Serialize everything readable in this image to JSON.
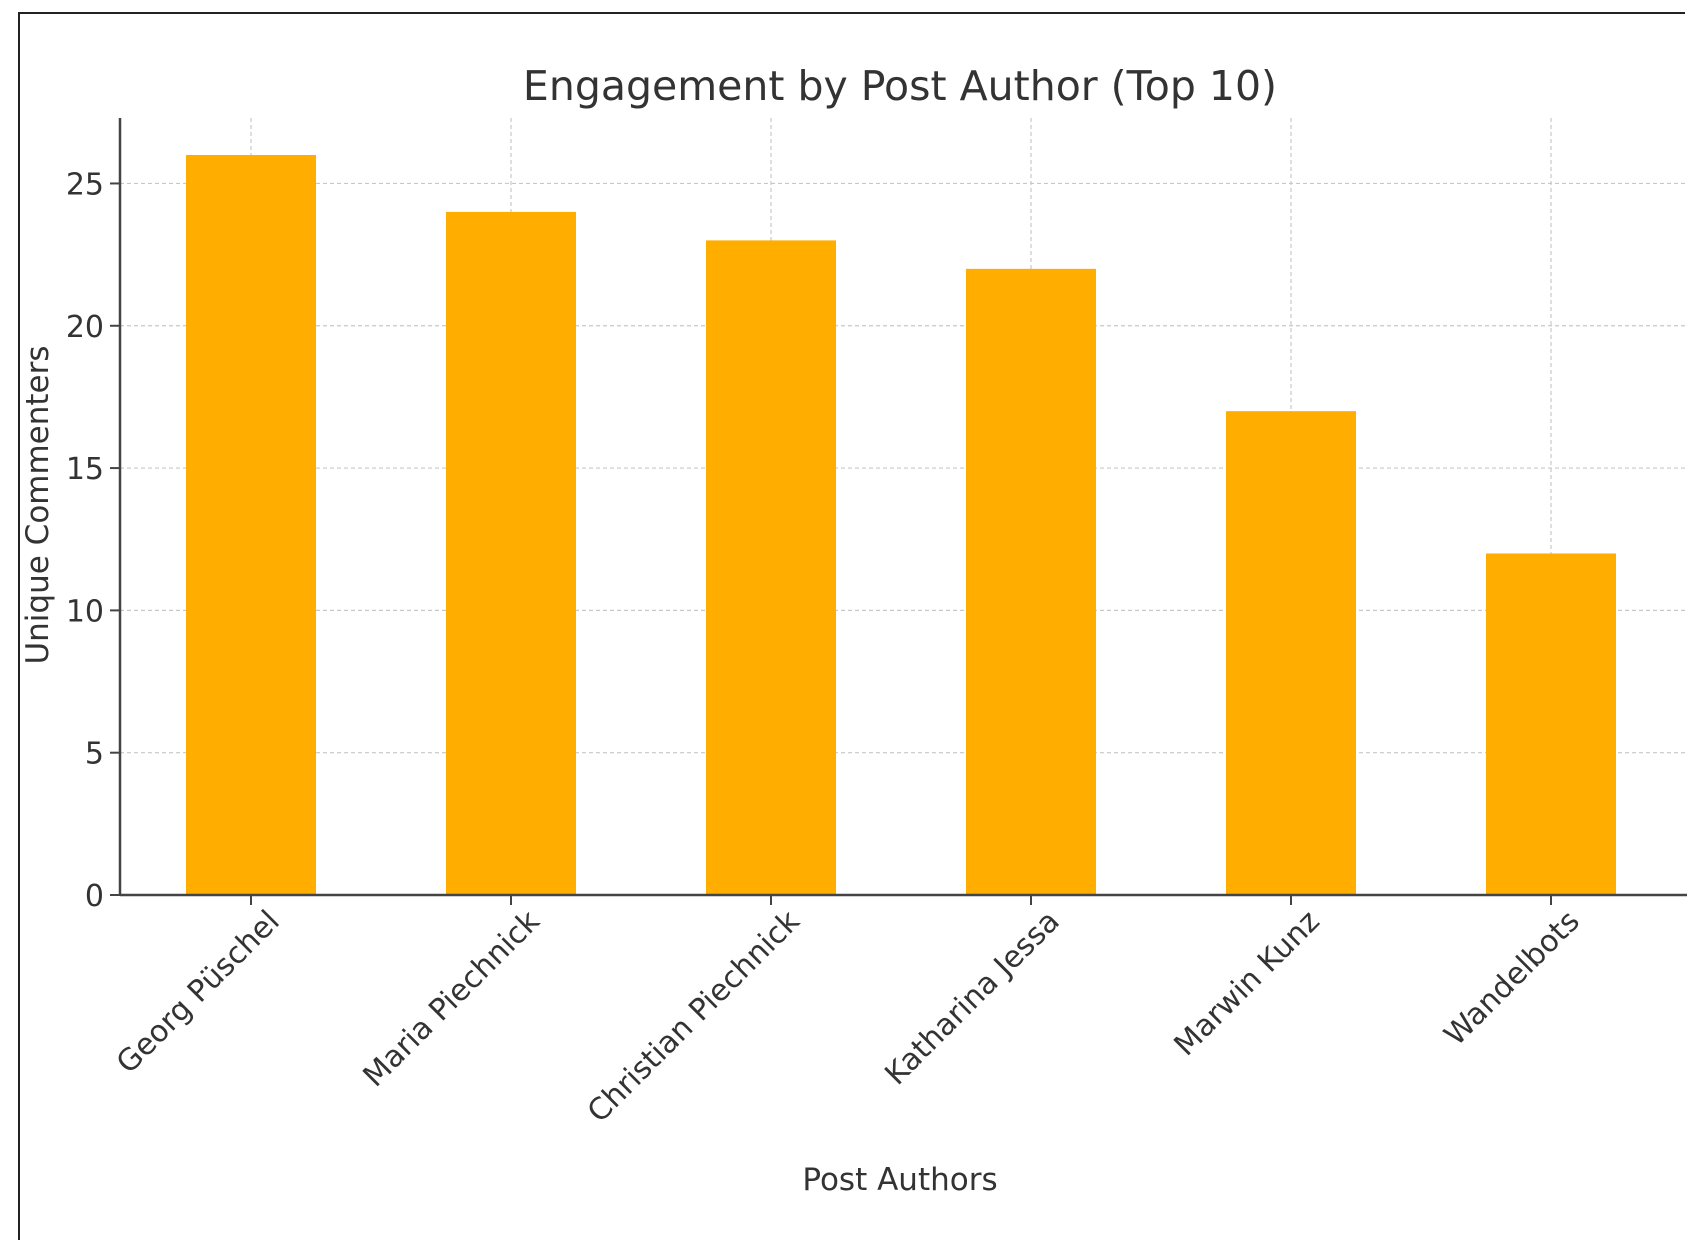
{
  "chart_data": {
    "type": "bar",
    "title": "Engagement by Post Author (Top 10)",
    "xlabel": "Post Authors",
    "ylabel": "Unique Commenters",
    "categories": [
      "Georg Püschel",
      "Maria Piechnick",
      "Christian Piechnick",
      "Katharina Jessa",
      "Marwin Kunz",
      "Wandelbots"
    ],
    "values": [
      26,
      24,
      23,
      22,
      17,
      12
    ],
    "ylim": [
      0,
      27.3
    ],
    "yticks": [
      0,
      5,
      10,
      15,
      20,
      25
    ],
    "grid": true,
    "bar_color": "#FFAE00"
  }
}
